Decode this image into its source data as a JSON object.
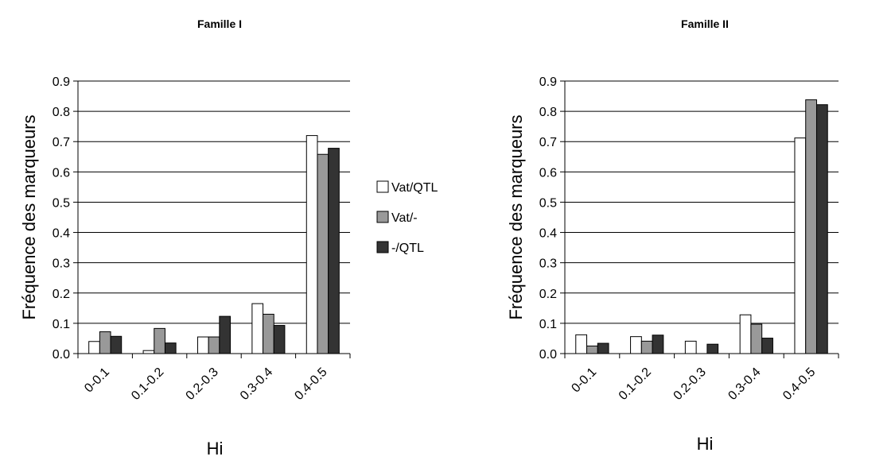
{
  "chart_data": [
    {
      "type": "bar",
      "title": "Famille I",
      "xlabel": "Hi",
      "ylabel": "Fréquence des marqueurs",
      "categories": [
        "0-0.1",
        "0.1-0.2",
        "0.2-0.3",
        "0.3-0.4",
        "0.4-0.5"
      ],
      "ylim": [
        0,
        0.9
      ],
      "yticks": [
        "0.0",
        "0.1",
        "0.2",
        "0.3",
        "0.4",
        "0.5",
        "0.6",
        "0.7",
        "0.8",
        "0.9"
      ],
      "grid": true,
      "series": [
        {
          "name": "Vat/QTL",
          "values": [
            0.04,
            0.01,
            0.055,
            0.165,
            0.72
          ],
          "color": "#ffffff"
        },
        {
          "name": "Vat/-",
          "values": [
            0.072,
            0.083,
            0.055,
            0.13,
            0.658
          ],
          "color": "#999999"
        },
        {
          "name": "-/QTL",
          "values": [
            0.057,
            0.035,
            0.123,
            0.093,
            0.678
          ],
          "color": "#333333"
        }
      ]
    },
    {
      "type": "bar",
      "title": "Famille II",
      "xlabel": "Hi",
      "ylabel": "Fréquence des marqueurs",
      "categories": [
        "0-0.1",
        "0.1-0.2",
        "0.2-0.3",
        "0.3-0.4",
        "0.4-0.5"
      ],
      "ylim": [
        0,
        0.9
      ],
      "yticks": [
        "0.0",
        "0.1",
        "0.2",
        "0.3",
        "0.4",
        "0.5",
        "0.6",
        "0.7",
        "0.8",
        "0.9"
      ],
      "grid": true,
      "series": [
        {
          "name": "Vat/QTL",
          "values": [
            0.062,
            0.056,
            0.041,
            0.128,
            0.712
          ],
          "color": "#ffffff"
        },
        {
          "name": "Vat/-",
          "values": [
            0.025,
            0.041,
            0,
            0.097,
            0.838
          ],
          "color": "#999999"
        },
        {
          "name": "-/QTL",
          "values": [
            0.034,
            0.061,
            0.031,
            0.051,
            0.822
          ],
          "color": "#333333"
        }
      ]
    }
  ],
  "legend": {
    "position": "between charts, middle",
    "items": [
      {
        "label": "Vat/QTL",
        "color": "#ffffff"
      },
      {
        "label": "Vat/-",
        "color": "#999999"
      },
      {
        "label": "-/QTL",
        "color": "#333333"
      }
    ]
  }
}
